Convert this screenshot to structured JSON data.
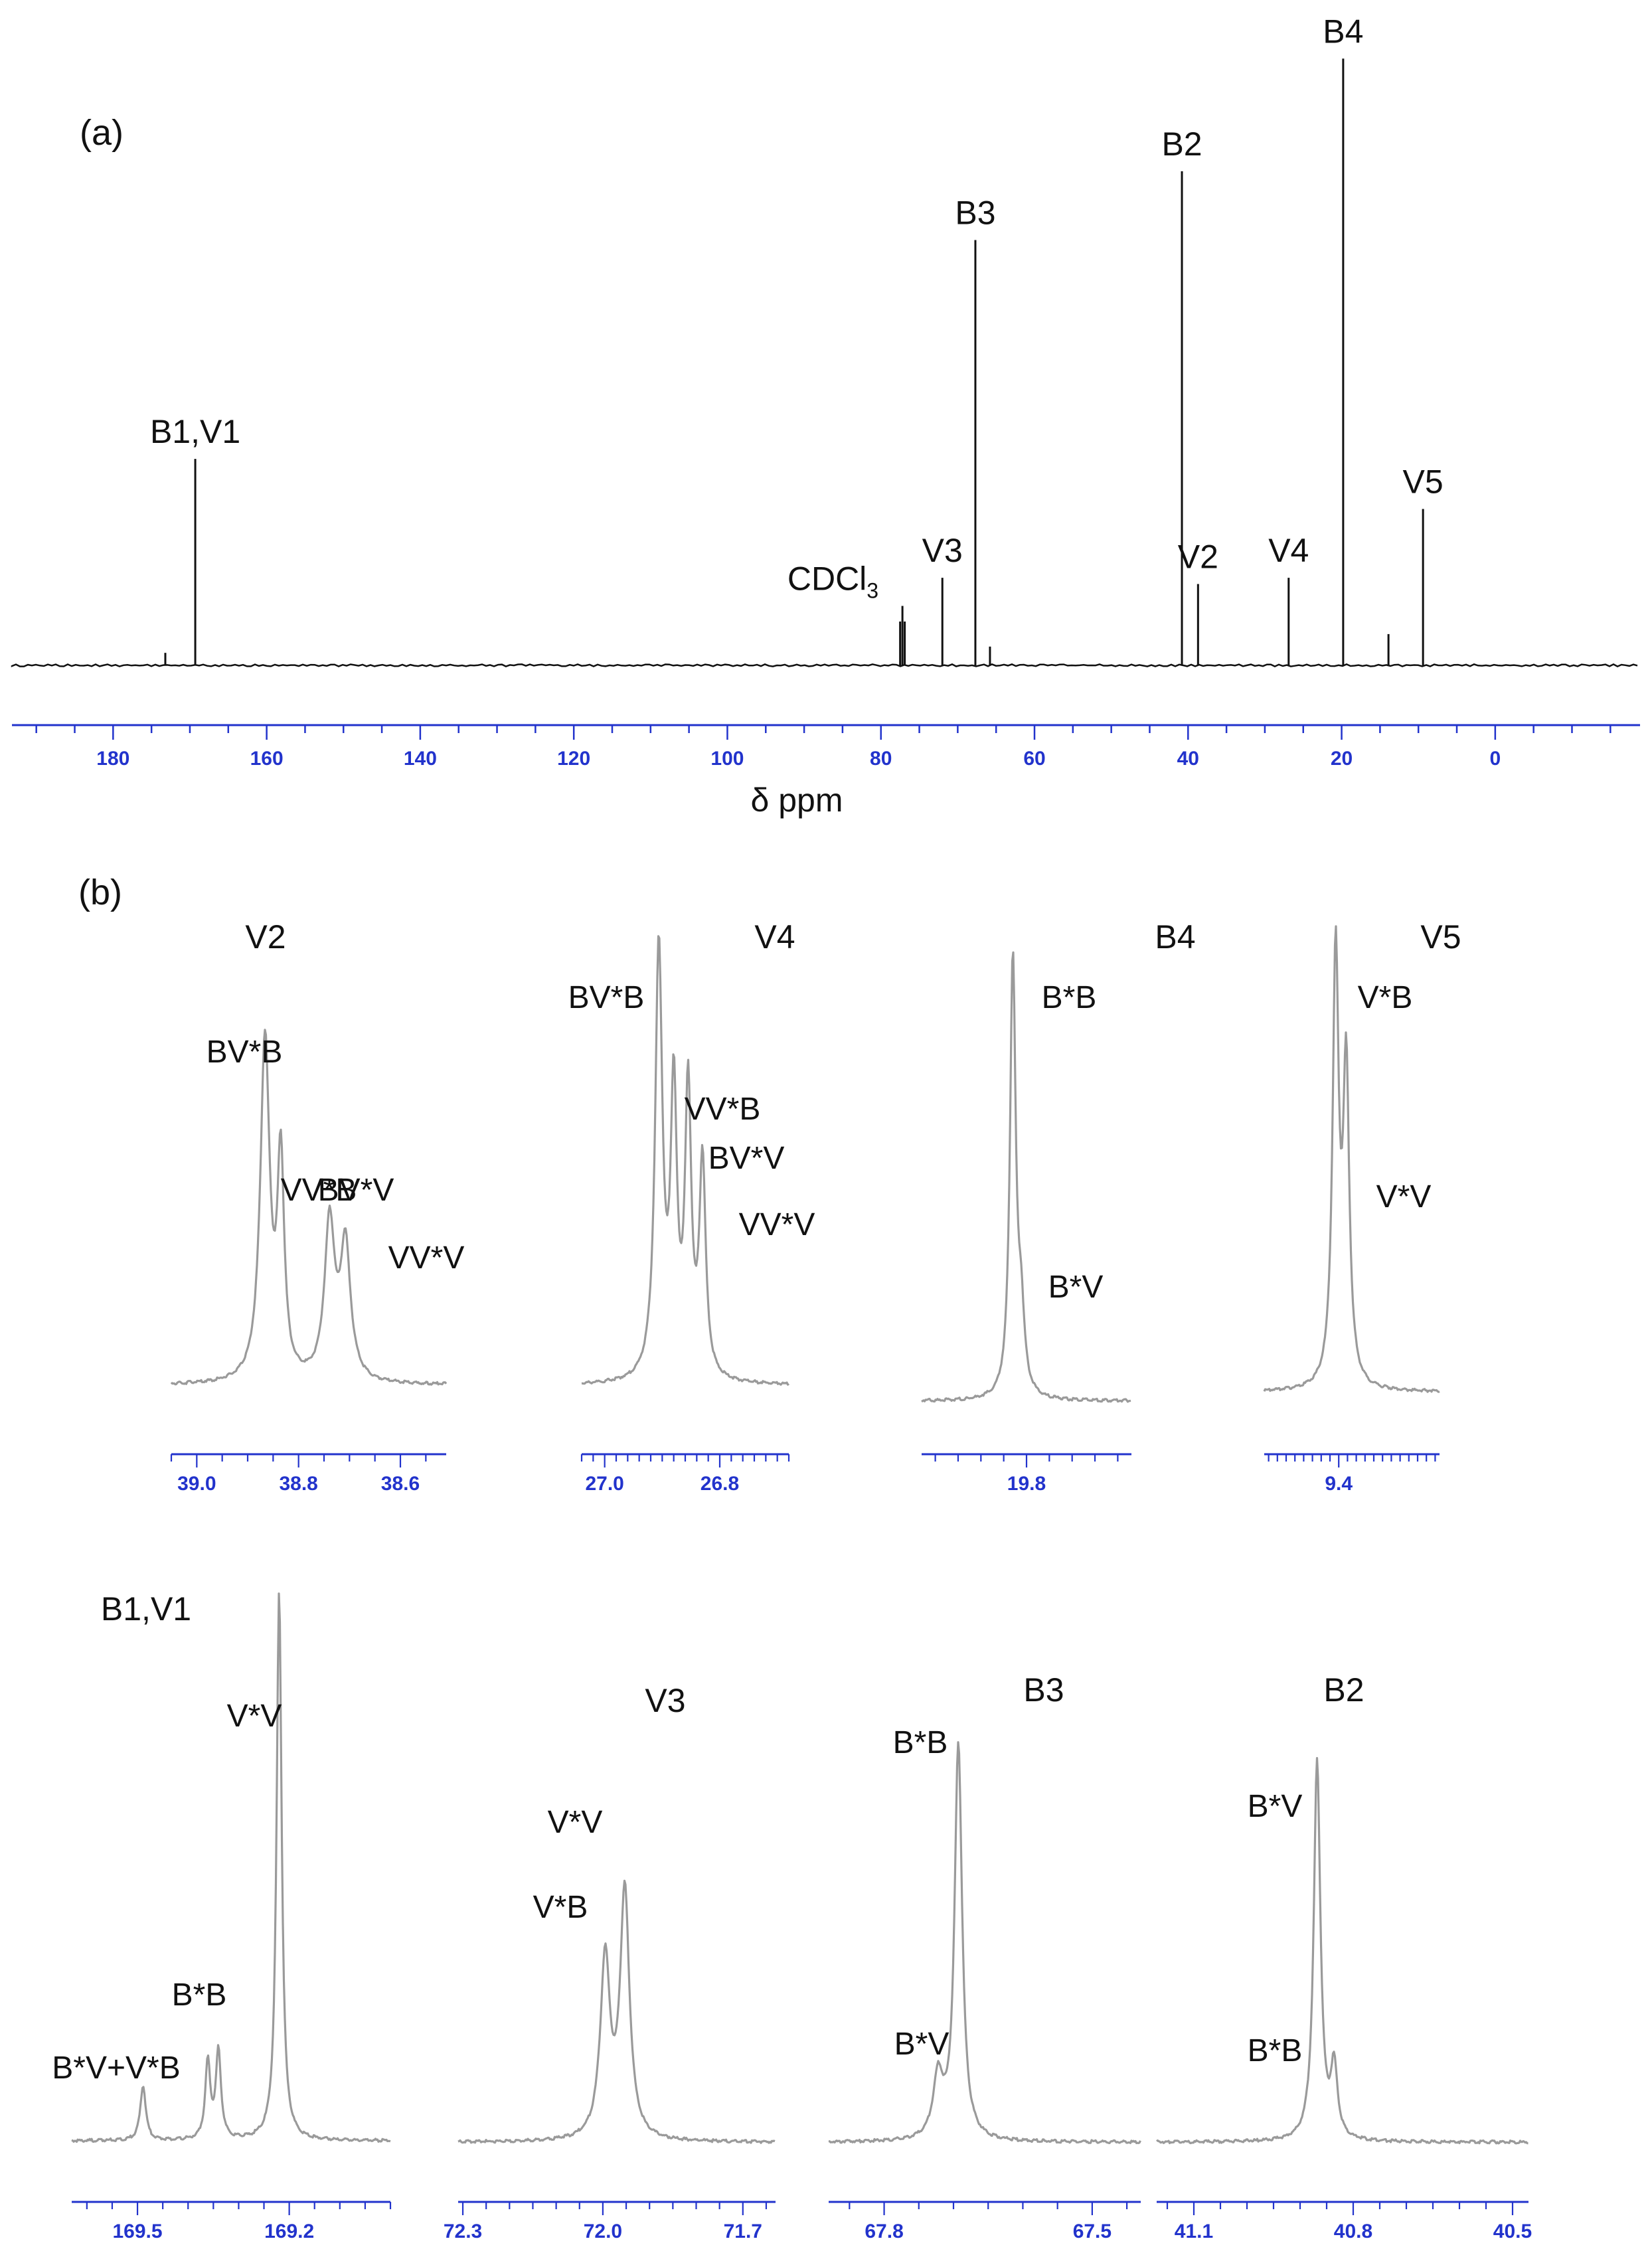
{
  "colors": {
    "main_trace": "#111111",
    "inset_trace": "#9a9a9a",
    "axis": "#2233cc",
    "text": "#111111"
  },
  "chart_data": [
    {
      "id": "a",
      "type": "line",
      "panel_label": "(a)",
      "xlabel": "δ  ppm",
      "xlim": [
        193,
        -18
      ],
      "x_reversed": true,
      "ylim": [
        0,
        100
      ],
      "ticks": [
        180,
        160,
        140,
        120,
        100,
        80,
        60,
        40,
        20,
        0
      ],
      "peaks": [
        {
          "x": 173.2,
          "y": 2,
          "label": ""
        },
        {
          "x": 169.3,
          "y": 33,
          "label": "B1,V1"
        },
        {
          "x": 77.2,
          "y": 9.5,
          "label": "CDCl",
          "label_sub": "3"
        },
        {
          "x": 72.0,
          "y": 14,
          "label": "V3"
        },
        {
          "x": 67.7,
          "y": 68,
          "label": "B3"
        },
        {
          "x": 65.8,
          "y": 3,
          "label": ""
        },
        {
          "x": 40.8,
          "y": 79,
          "label": "B2"
        },
        {
          "x": 38.7,
          "y": 13,
          "label": "V2"
        },
        {
          "x": 26.9,
          "y": 14,
          "label": "V4"
        },
        {
          "x": 19.8,
          "y": 97,
          "label": "B4"
        },
        {
          "x": 13.9,
          "y": 5,
          "label": ""
        },
        {
          "x": 9.4,
          "y": 25,
          "label": "V5"
        }
      ]
    },
    {
      "id": "b-V2",
      "type": "line",
      "panel_label": "(b)",
      "title": "V2",
      "xlim": [
        39.05,
        38.51
      ],
      "ticks": [
        "39.0",
        "38.8",
        "38.6"
      ],
      "tick_values": [
        39.0,
        38.8,
        38.6
      ],
      "peaks": [
        {
          "x": 38.866,
          "y": 100,
          "w": 0.011,
          "label": "BV*B"
        },
        {
          "x": 38.835,
          "y": 63,
          "w": 0.008,
          "label": "VV*B"
        },
        {
          "x": 38.739,
          "y": 46,
          "w": 0.012,
          "label": "BV*V"
        },
        {
          "x": 38.708,
          "y": 39,
          "w": 0.012,
          "label": "VV*V"
        }
      ]
    },
    {
      "id": "b-V4",
      "type": "line",
      "title": "V4",
      "xlim": [
        27.04,
        26.68
      ],
      "ticks": [
        "27.0",
        "26.8"
      ],
      "tick_values": [
        27.0,
        26.8
      ],
      "peaks": [
        {
          "x": 26.906,
          "y": 100,
          "w": 0.0075,
          "label": "BV*B"
        },
        {
          "x": 26.88,
          "y": 65,
          "w": 0.0065,
          "label": "VV*B"
        },
        {
          "x": 26.855,
          "y": 66,
          "w": 0.0065,
          "label": "BV*V"
        },
        {
          "x": 26.83,
          "y": 50,
          "w": 0.0065,
          "label": "VV*V"
        }
      ]
    },
    {
      "id": "b-B4",
      "type": "line",
      "title": "B4",
      "xlim": [
        20.03,
        19.57
      ],
      "ticks": [
        "19.8"
      ],
      "tick_values": [
        19.8
      ],
      "peaks": [
        {
          "x": 19.83,
          "y": 100,
          "w": 0.0075,
          "label": "B*B"
        },
        {
          "x": 19.812,
          "y": 17,
          "w": 0.0085,
          "label": "B*V"
        }
      ]
    },
    {
      "id": "b-V5",
      "type": "line",
      "title": "V5",
      "xlim": [
        9.485,
        9.285
      ],
      "ticks": [
        "9.4"
      ],
      "tick_values": [
        9.4
      ],
      "peaks": [
        {
          "x": 9.4035,
          "y": 100,
          "w": 0.0042,
          "label": "V*B"
        },
        {
          "x": 9.3915,
          "y": 72,
          "w": 0.0042,
          "label": "V*V"
        }
      ]
    },
    {
      "id": "b-B1V1",
      "type": "line",
      "title": "B1,V1",
      "xlim": [
        169.63,
        169.0
      ],
      "ticks": [
        "169.5",
        "169.2"
      ],
      "tick_values": [
        169.5,
        169.2
      ],
      "peaks": [
        {
          "x": 169.489,
          "y": 10,
          "w": 0.0065,
          "label": "V*V"
        },
        {
          "x": 169.361,
          "y": 14,
          "w": 0.006,
          "label": "B*V+V*B"
        },
        {
          "x": 169.34,
          "y": 16,
          "w": 0.006,
          "label": ""
        },
        {
          "x": 169.22,
          "y": 100,
          "w": 0.006,
          "label": "B*B"
        }
      ]
    },
    {
      "id": "b-V3",
      "type": "line",
      "title": "V3",
      "xlim": [
        72.31,
        71.63
      ],
      "ticks": [
        "72.3",
        "72.0",
        "71.7"
      ],
      "tick_values": [
        72.3,
        72.0,
        71.7
      ],
      "peaks": [
        {
          "x": 71.995,
          "y": 45,
          "w": 0.0125,
          "label": "V*V"
        },
        {
          "x": 71.953,
          "y": 62,
          "w": 0.012,
          "label": "V*B"
        }
      ]
    },
    {
      "id": "b-B3",
      "type": "line",
      "title": "B3",
      "xlim": [
        67.88,
        67.43
      ],
      "ticks": [
        "67.8",
        "67.5"
      ],
      "tick_values": [
        67.8,
        67.5
      ],
      "peaks": [
        {
          "x": 67.722,
          "y": 12,
          "w": 0.0085,
          "label": "B*V"
        },
        {
          "x": 67.693,
          "y": 78,
          "w": 0.0065,
          "label": "B*B"
        }
      ]
    },
    {
      "id": "b-B2",
      "type": "line",
      "title": "B2",
      "xlim": [
        41.17,
        40.47
      ],
      "ticks": [
        "41.1",
        "40.8",
        "40.5"
      ],
      "tick_values": [
        41.1,
        40.8,
        40.5
      ],
      "peaks": [
        {
          "x": 40.868,
          "y": 76,
          "w": 0.0075,
          "label": "B*B"
        },
        {
          "x": 40.836,
          "y": 14,
          "w": 0.0075,
          "label": "B*V"
        }
      ]
    }
  ]
}
